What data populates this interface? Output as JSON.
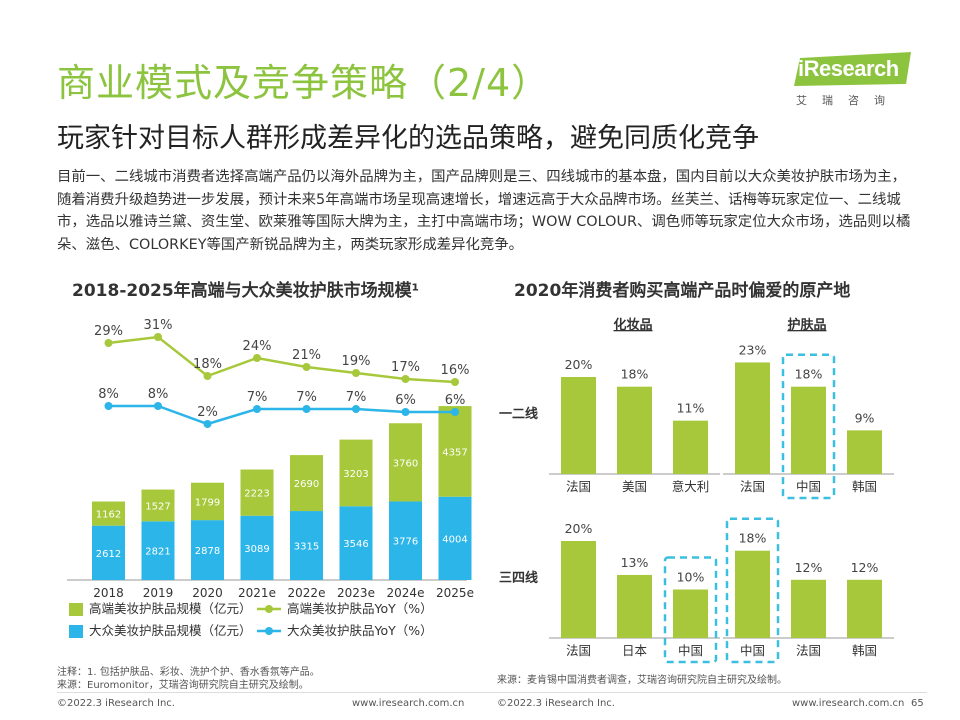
{
  "header": {
    "title": "商业模式及竞争策略（2/4）",
    "subtitle": "玩家针对目标人群形成差异化的选品策略，避免同质化竞争"
  },
  "logo": {
    "brand": "iResearch",
    "sub": "艾瑞咨询"
  },
  "description": "目前一、二线城市消费者选择高端产品仍以海外品牌为主，国产品牌则是三、四线城市的基本盘，国内目前以大众美妆护肤市场为主，随着消费升级趋势进一步发展，预计未来5年高端市场呈现高速增长，增速远高于大众品牌市场。丝芙兰、话梅等玩家定位一、二线城市，选品以雅诗兰黛、资生堂、欧莱雅等国际大牌为主，主打中高端市场；WOW COLOUR、调色师等玩家定位大众市场，选品则以橘朵、滋色、COLORKEY等国产新锐品牌为主，两类玩家形成差异化竞争。",
  "colors": {
    "green": "#a6c83a",
    "blue": "#2bb5e8",
    "title_green": "#8dc43f",
    "dash": "#3bbfe0"
  },
  "chart_data": [
    {
      "type": "bar",
      "title": "2018-2025年高端与大众美妆护肤市场规模¹",
      "categories": [
        "2018",
        "2019",
        "2020",
        "2021e",
        "2022e",
        "2023e",
        "2024e",
        "2025e"
      ],
      "series": [
        {
          "name": "大众美妆护肤品规模（亿元）",
          "values": [
            2612,
            2821,
            2878,
            3089,
            3315,
            3546,
            3776,
            4004
          ],
          "color": "#2bb5e8",
          "stack": true
        },
        {
          "name": "高端美妆护肤品规模（亿元）",
          "values": [
            1162,
            1527,
            1799,
            2223,
            2690,
            3203,
            3760,
            4357
          ],
          "color": "#a6c83a",
          "stack": true
        },
        {
          "name": "高端美妆护肤品YoY（%）",
          "values": [
            29,
            31,
            18,
            24,
            21,
            19,
            17,
            16
          ],
          "labels": [
            "29%",
            "31%",
            "18%",
            "24%",
            "21%",
            "19%",
            "17%",
            "16%"
          ],
          "color": "#a6c83a",
          "line": true
        },
        {
          "name": "大众美妆护肤品YoY（%）",
          "values": [
            8,
            8,
            2,
            7,
            7,
            7,
            6,
            6
          ],
          "labels": [
            "8%",
            "8%",
            "2%",
            "7%",
            "7%",
            "7%",
            "6%",
            "6%"
          ],
          "color": "#2bb5e8",
          "line": true
        }
      ],
      "legend": [
        {
          "label": "高端美妆护肤品规模（亿元）",
          "kind": "box",
          "color": "#a6c83a"
        },
        {
          "label": "高端美妆护肤品YoY（%）",
          "kind": "line",
          "color": "#a6c83a"
        },
        {
          "label": "大众美妆护肤品规模（亿元）",
          "kind": "box",
          "color": "#2bb5e8"
        },
        {
          "label": "大众美妆护肤品YoY（%）",
          "kind": "line",
          "color": "#2bb5e8"
        }
      ],
      "legend_position": "bottom"
    },
    {
      "type": "bar",
      "title": "2020年消费者购买高端产品时偏爱的原产地",
      "column_headers": [
        "化妆品",
        "护肤品"
      ],
      "row_labels": [
        "一二线",
        "三四线"
      ],
      "panels": [
        {
          "row": "一二线",
          "column": "化妆品",
          "categories": [
            "法国",
            "美国",
            "意大利"
          ],
          "values": [
            20,
            18,
            11
          ],
          "labels": [
            "20%",
            "18%",
            "11%"
          ],
          "highlight": null
        },
        {
          "row": "一二线",
          "column": "护肤品",
          "categories": [
            "法国",
            "中国",
            "韩国"
          ],
          "values": [
            23,
            18,
            9
          ],
          "labels": [
            "23%",
            "18%",
            "9%"
          ],
          "highlight": "中国"
        },
        {
          "row": "三四线",
          "column": "化妆品",
          "categories": [
            "法国",
            "日本",
            "中国"
          ],
          "values": [
            20,
            13,
            10
          ],
          "labels": [
            "20%",
            "13%",
            "10%"
          ],
          "highlight": "中国"
        },
        {
          "row": "三四线",
          "column": "护肤品",
          "categories": [
            "中国",
            "法国",
            "韩国"
          ],
          "values": [
            18,
            12,
            12
          ],
          "labels": [
            "18%",
            "12%",
            "12%"
          ],
          "highlight": "中国"
        }
      ]
    }
  ],
  "notes": {
    "note": "注释：1. 包括护肤品、彩妆、洗护个护、香水香氛等产品。",
    "source_left": "来源：Euromonitor，艾瑞咨询研究院自主研究及绘制。",
    "source_right": "来源：麦肯锡中国消费者调查，艾瑞咨询研究院自主研究及绘制。"
  },
  "footer": {
    "left_copyright": "©2022.3 iResearch Inc.",
    "left_url": "www.iresearch.com.cn",
    "right_copyright": "©2022.3 iResearch Inc.",
    "right_url": "www.iresearch.com.cn",
    "page": "65"
  }
}
